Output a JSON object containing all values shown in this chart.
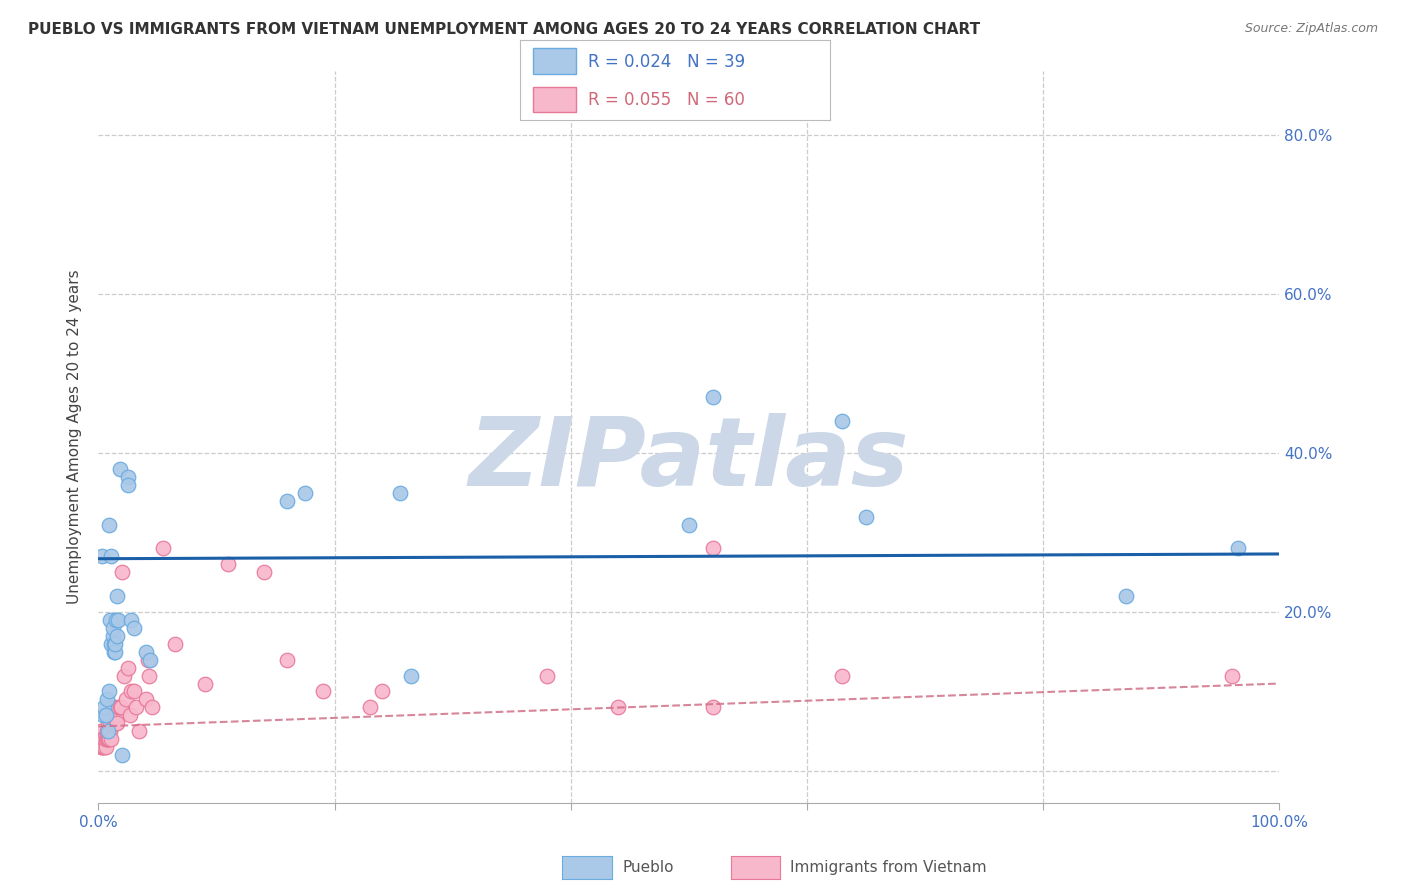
{
  "title": "PUEBLO VS IMMIGRANTS FROM VIETNAM UNEMPLOYMENT AMONG AGES 20 TO 24 YEARS CORRELATION CHART",
  "source": "Source: ZipAtlas.com",
  "ylabel": "Unemployment Among Ages 20 to 24 years",
  "xlim": [
    0.0,
    1.0
  ],
  "ylim": [
    -0.04,
    0.88
  ],
  "pueblo_color": "#aac8e8",
  "pueblo_edge_color": "#6aabe0",
  "vietnam_color": "#f8b8cc",
  "vietnam_edge_color": "#e87898",
  "trend_blue": "#1a5fa8",
  "trend_pink": "#d07088",
  "pueblo_x": [
    0.003,
    0.004,
    0.005,
    0.006,
    0.007,
    0.008,
    0.009,
    0.009,
    0.01,
    0.011,
    0.011,
    0.012,
    0.012,
    0.013,
    0.013,
    0.014,
    0.014,
    0.015,
    0.016,
    0.016,
    0.017,
    0.018,
    0.02,
    0.025,
    0.025,
    0.028,
    0.03,
    0.04,
    0.044,
    0.16,
    0.175,
    0.255,
    0.265,
    0.5,
    0.52,
    0.63,
    0.65,
    0.87,
    0.965
  ],
  "pueblo_y": [
    0.27,
    0.07,
    0.08,
    0.07,
    0.09,
    0.05,
    0.1,
    0.31,
    0.19,
    0.16,
    0.27,
    0.17,
    0.18,
    0.16,
    0.15,
    0.15,
    0.16,
    0.19,
    0.22,
    0.17,
    0.19,
    0.38,
    0.02,
    0.37,
    0.36,
    0.19,
    0.18,
    0.15,
    0.14,
    0.34,
    0.35,
    0.35,
    0.12,
    0.31,
    0.47,
    0.44,
    0.32,
    0.22,
    0.28
  ],
  "vietnam_x": [
    0.001,
    0.001,
    0.002,
    0.002,
    0.003,
    0.003,
    0.004,
    0.005,
    0.005,
    0.006,
    0.006,
    0.007,
    0.007,
    0.008,
    0.008,
    0.009,
    0.009,
    0.01,
    0.01,
    0.011,
    0.011,
    0.012,
    0.012,
    0.013,
    0.013,
    0.014,
    0.015,
    0.015,
    0.016,
    0.017,
    0.018,
    0.019,
    0.02,
    0.022,
    0.023,
    0.025,
    0.027,
    0.028,
    0.03,
    0.032,
    0.034,
    0.04,
    0.042,
    0.043,
    0.045,
    0.055,
    0.065,
    0.09,
    0.11,
    0.14,
    0.16,
    0.19,
    0.23,
    0.24,
    0.38,
    0.44,
    0.52,
    0.52,
    0.63,
    0.96
  ],
  "vietnam_y": [
    0.04,
    0.04,
    0.03,
    0.05,
    0.03,
    0.04,
    0.03,
    0.03,
    0.04,
    0.03,
    0.04,
    0.04,
    0.05,
    0.04,
    0.06,
    0.04,
    0.05,
    0.05,
    0.06,
    0.04,
    0.07,
    0.07,
    0.08,
    0.06,
    0.08,
    0.07,
    0.06,
    0.07,
    0.06,
    0.08,
    0.08,
    0.08,
    0.25,
    0.12,
    0.09,
    0.13,
    0.07,
    0.1,
    0.1,
    0.08,
    0.05,
    0.09,
    0.14,
    0.12,
    0.08,
    0.28,
    0.16,
    0.11,
    0.26,
    0.25,
    0.14,
    0.1,
    0.08,
    0.1,
    0.12,
    0.08,
    0.08,
    0.28,
    0.12,
    0.12
  ],
  "blue_trend_x": [
    0.0,
    1.0
  ],
  "blue_trend_y": [
    0.267,
    0.273
  ],
  "pink_trend_x": [
    0.0,
    1.0
  ],
  "pink_trend_y": [
    0.056,
    0.11
  ],
  "ytick_vals": [
    0.0,
    0.2,
    0.4,
    0.6,
    0.8
  ],
  "ytick_labels": [
    "",
    "20.0%",
    "40.0%",
    "60.0%",
    "80.0%"
  ],
  "xtick_vals": [
    0.0,
    0.2,
    0.4,
    0.6,
    0.8,
    1.0
  ],
  "xtick_labels": [
    "0.0%",
    "",
    "",
    "",
    "",
    "100.0%"
  ],
  "tick_color": "#4472c4",
  "grid_color": "#cccccc",
  "watermark_text": "ZIPatlas",
  "watermark_color": "#ccd8e8",
  "legend_box_color": "#aac8e8",
  "legend_box_edge": "#6aabe0",
  "legend_box2_color": "#f8b8cc",
  "legend_box2_edge": "#e87898"
}
